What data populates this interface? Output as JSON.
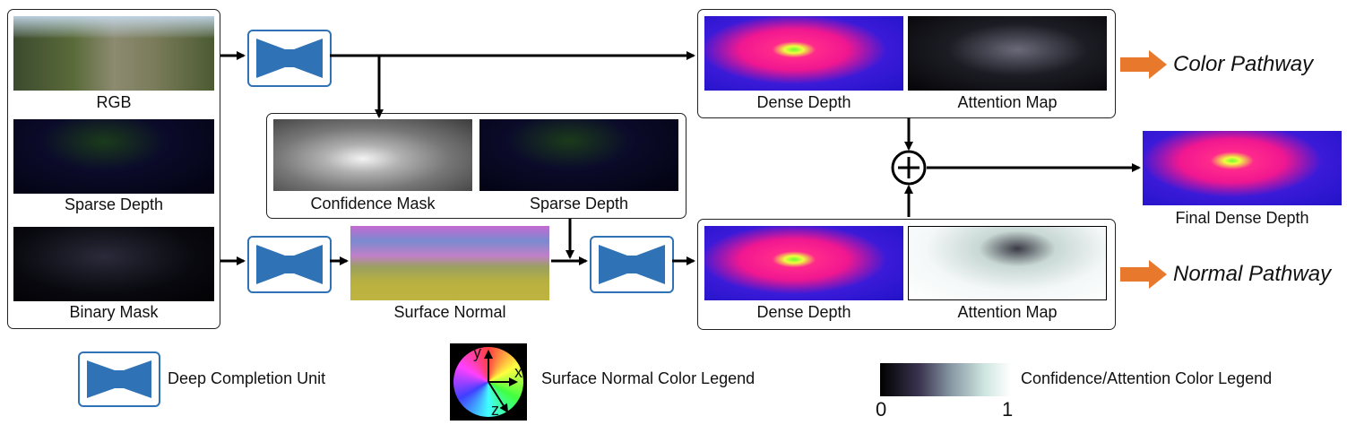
{
  "captions": {
    "rgb": "RGB",
    "sparse_depth_left": "Sparse Depth",
    "binary_mask": "Binary Mask",
    "confidence_mask": "Confidence Mask",
    "sparse_depth_mid": "Sparse Depth",
    "surface_normal": "Surface Normal",
    "dense_depth_top": "Dense Depth",
    "attention_map_top": "Attention Map",
    "dense_depth_bottom": "Dense Depth",
    "attention_map_bottom": "Attention Map",
    "final_dense_depth": "Final Dense Depth"
  },
  "pathways": {
    "color": "Color Pathway",
    "normal": "Normal Pathway",
    "arrow_color": "#e8782c"
  },
  "legend": {
    "dcu_label": "Deep Completion Unit",
    "normal_legend_label": "Surface Normal Color Legend",
    "axis_y": "y",
    "axis_x": "x",
    "axis_z": "z",
    "confidence_legend_label": "Confidence/Attention Color Legend",
    "scale_min": "0",
    "scale_max": "1"
  },
  "colors": {
    "dcu_blue": "#2f72b5",
    "line": "#000000"
  }
}
